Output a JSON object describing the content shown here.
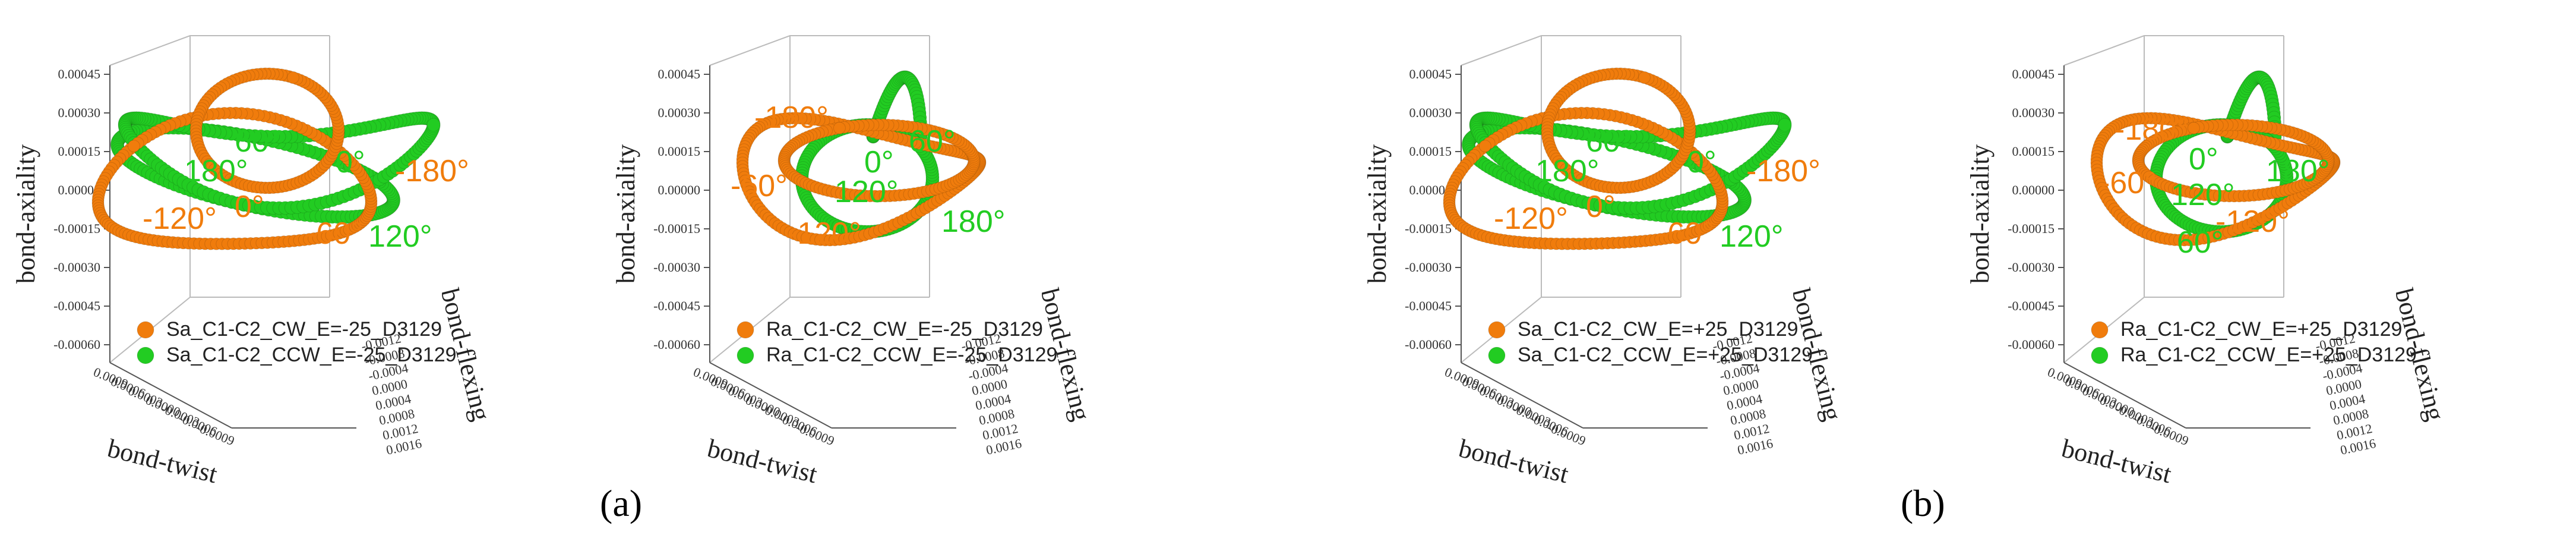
{
  "panel_labels": [
    "(a)",
    "(a)",
    "(b)",
    "(b)"
  ],
  "chart_data": [
    {
      "type": "scatter3d",
      "xlabel": "bond-twist",
      "ylabel": "bond-flexing",
      "zlabel": "bond-axiality",
      "z_ticks": [
        "0.00045",
        "0.00030",
        "0.00015",
        "0.00000",
        "-0.00015",
        "-0.00030",
        "-0.00045",
        "-0.00060"
      ],
      "y_ticks": [
        "-0.0012",
        "-0.0008",
        "-0.0004",
        "0.0000",
        "0.0004",
        "0.0008",
        "0.0012",
        "0.0016"
      ],
      "x_ticks": [
        "0.0009",
        "0.0006",
        "0.0003",
        "0.0000",
        "-0.0003",
        "-0.0006",
        "-0.0009"
      ],
      "series": [
        {
          "name": "Sa_C1-C2_CW_E=-25_D3129",
          "color": "#f07c0c"
        },
        {
          "name": "Sa_C1-C2_CCW_E=-25_D3129",
          "color": "#22cc22"
        }
      ],
      "annotations": [
        {
          "text": "60°",
          "color": "#22cc22"
        },
        {
          "text": "180°",
          "color": "#22cc22"
        },
        {
          "text": "0°",
          "color": "#22cc22"
        },
        {
          "text": "120°",
          "color": "#22cc22"
        },
        {
          "text": "-120°",
          "color": "#f07c0c"
        },
        {
          "text": "0°",
          "color": "#f07c0c"
        },
        {
          "text": "-60°",
          "color": "#f07c0c"
        },
        {
          "text": "-180°",
          "color": "#f07c0c"
        }
      ]
    },
    {
      "type": "scatter3d",
      "xlabel": "bond-twist",
      "ylabel": "bond-flexing",
      "zlabel": "bond-axiality",
      "z_ticks": [
        "0.00045",
        "0.00030",
        "0.00015",
        "0.00000",
        "-0.00015",
        "-0.00030",
        "-0.00045",
        "-0.00060"
      ],
      "y_ticks": [
        "-0.0012",
        "-0.0008",
        "-0.0004",
        "0.0000",
        "0.0004",
        "0.0008",
        "0.0012",
        "0.0016"
      ],
      "x_ticks": [
        "0.0009",
        "0.0006",
        "0.0003",
        "0.0000",
        "-0.0003",
        "-0.0006",
        "-0.0009"
      ],
      "series": [
        {
          "name": "Ra_C1-C2_CW_E=-25_D3129",
          "color": "#f07c0c"
        },
        {
          "name": "Ra_C1-C2_CCW_E=-25_D3129",
          "color": "#22cc22"
        }
      ],
      "annotations": [
        {
          "text": "-180°",
          "color": "#f07c0c"
        },
        {
          "text": "-60°",
          "color": "#f07c0c"
        },
        {
          "text": "-120°",
          "color": "#f07c0c"
        },
        {
          "text": "0°",
          "color": "#22cc22"
        },
        {
          "text": "60°",
          "color": "#22cc22"
        },
        {
          "text": "120°",
          "color": "#22cc22"
        },
        {
          "text": "180°",
          "color": "#22cc22"
        }
      ]
    },
    {
      "type": "scatter3d",
      "xlabel": "bond-twist",
      "ylabel": "bond-flexing",
      "zlabel": "bond-axiality",
      "z_ticks": [
        "0.00045",
        "0.00030",
        "0.00015",
        "0.00000",
        "-0.00015",
        "-0.00030",
        "-0.00045",
        "-0.00060"
      ],
      "y_ticks": [
        "-0.0012",
        "-0.0008",
        "-0.0004",
        "0.0000",
        "0.0004",
        "0.0008",
        "0.0012",
        "0.0016"
      ],
      "x_ticks": [
        "0.0009",
        "0.0006",
        "0.0003",
        "0.0000",
        "-0.0003",
        "-0.0006",
        "-0.0009"
      ],
      "series": [
        {
          "name": "Sa_C1-C2_CW_E=+25_D3129",
          "color": "#f07c0c"
        },
        {
          "name": "Sa_C1-C2_CCW_E=+25_D3129",
          "color": "#22cc22"
        }
      ],
      "annotations": [
        {
          "text": "60°",
          "color": "#22cc22"
        },
        {
          "text": "180°",
          "color": "#22cc22"
        },
        {
          "text": "0°",
          "color": "#22cc22"
        },
        {
          "text": "120°",
          "color": "#22cc22"
        },
        {
          "text": "-120°",
          "color": "#f07c0c"
        },
        {
          "text": "0°",
          "color": "#f07c0c"
        },
        {
          "text": "-60°",
          "color": "#f07c0c"
        },
        {
          "text": "-180°",
          "color": "#f07c0c"
        }
      ]
    },
    {
      "type": "scatter3d",
      "xlabel": "bond-twist",
      "ylabel": "bond-flexing",
      "zlabel": "bond-axiality",
      "z_ticks": [
        "0.00045",
        "0.00030",
        "0.00015",
        "0.00000",
        "-0.00015",
        "-0.00030",
        "-0.00045",
        "-0.00060"
      ],
      "y_ticks": [
        "-0.0012",
        "-0.0008",
        "-0.0004",
        "0.0000",
        "0.0004",
        "0.0008",
        "0.0012",
        "0.0016"
      ],
      "x_ticks": [
        "0.0009",
        "0.0006",
        "0.0003",
        "0.0000",
        "-0.0003",
        "-0.0006",
        "-0.0009"
      ],
      "series": [
        {
          "name": "Ra_C1-C2_CW_E=+25_D3129",
          "color": "#f07c0c"
        },
        {
          "name": "Ra_C1-C2_CCW_E=+25_D3129",
          "color": "#22cc22"
        }
      ],
      "annotations": [
        {
          "text": "-180°",
          "color": "#f07c0c"
        },
        {
          "text": "-60°",
          "color": "#f07c0c"
        },
        {
          "text": "-120°",
          "color": "#f07c0c"
        },
        {
          "text": "0°",
          "color": "#22cc22"
        },
        {
          "text": "120°",
          "color": "#22cc22"
        },
        {
          "text": "60°",
          "color": "#22cc22"
        },
        {
          "text": "180°",
          "color": "#22cc22"
        }
      ]
    }
  ]
}
